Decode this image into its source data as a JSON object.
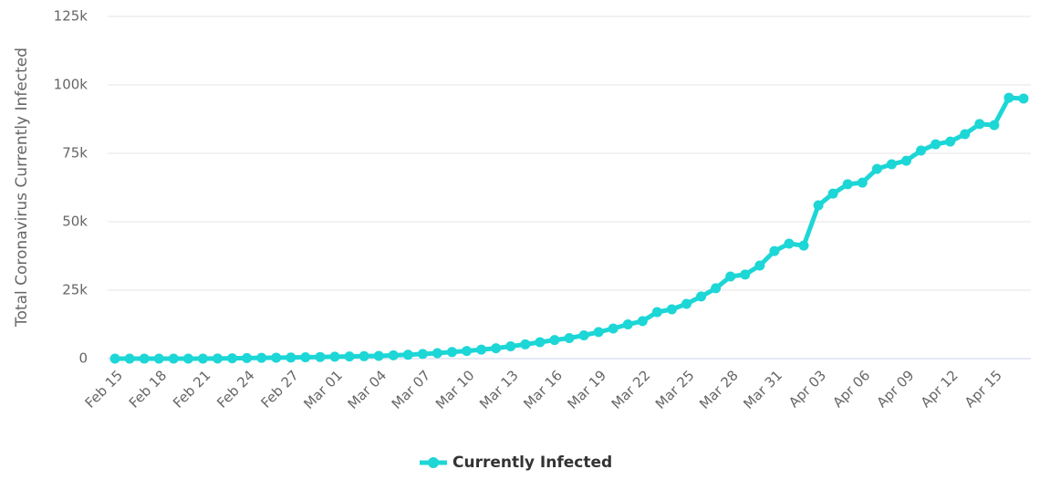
{
  "chart_data": {
    "type": "line",
    "y_label": "Total Coronavirus Currently Infected",
    "categories": [
      "Feb 15",
      null,
      null,
      "Feb 18",
      null,
      null,
      "Feb 21",
      null,
      null,
      "Feb 24",
      null,
      null,
      "Feb 27",
      null,
      null,
      "Mar 01",
      null,
      null,
      "Mar 04",
      null,
      null,
      "Mar 07",
      null,
      null,
      "Mar 10",
      null,
      null,
      "Mar 13",
      null,
      null,
      "Mar 16",
      null,
      null,
      "Mar 19",
      null,
      null,
      "Mar 22",
      null,
      null,
      "Mar 25",
      null,
      null,
      "Mar 28",
      null,
      null,
      "Mar 31",
      null,
      null,
      "Apr 03",
      null,
      null,
      "Apr 06",
      null,
      null,
      "Apr 09",
      null,
      null,
      "Apr 12",
      null,
      null,
      "Apr 15",
      null,
      null
    ],
    "series": [
      {
        "name": "Currently Infected",
        "color": "#1dd6d6",
        "values": [
          3,
          3,
          3,
          3,
          3,
          3,
          15,
          60,
          130,
          200,
          280,
          350,
          400,
          500,
          600,
          700,
          800,
          900,
          1000,
          1200,
          1400,
          1700,
          2000,
          2400,
          2800,
          3300,
          3800,
          4500,
          5200,
          6000,
          6800,
          7500,
          8500,
          9700,
          11000,
          12500,
          13700,
          17000,
          18000,
          20000,
          22700,
          25700,
          30000,
          30700,
          34000,
          39300,
          42000,
          41300,
          56000,
          60300,
          63700,
          64300,
          69300,
          71000,
          72300,
          76000,
          78300,
          79300,
          82000,
          85700,
          85300,
          95300,
          95000
        ]
      }
    ],
    "ylim": [
      0,
      125000
    ],
    "yticks": [
      0,
      {
        "value": 25000,
        "label": "25k"
      },
      {
        "value": 50000,
        "label": "50k"
      },
      {
        "value": 75000,
        "label": "75k"
      },
      {
        "value": 100000,
        "label": "100k"
      },
      {
        "value": 125000,
        "label": "125k"
      }
    ],
    "grid": true,
    "legend": "bottom"
  }
}
